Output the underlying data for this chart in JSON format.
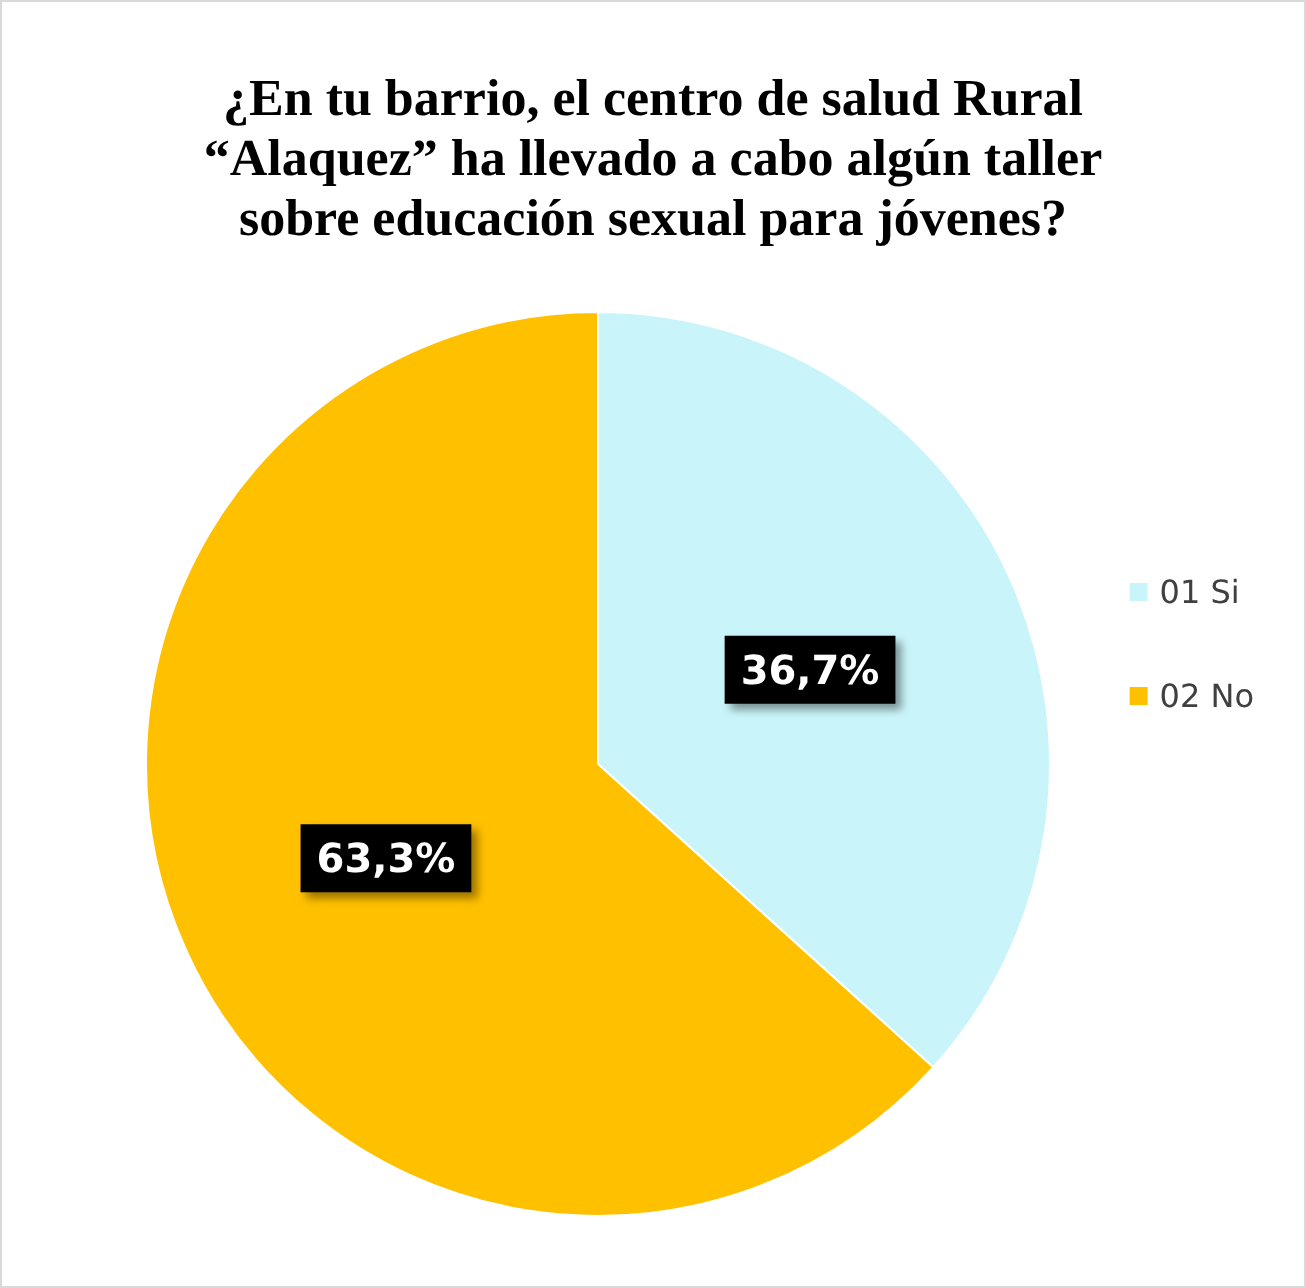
{
  "chart_data": {
    "type": "pie",
    "title": "¿En tu barrio, el centro de salud Rural\n“Alaquez” ha llevado a cabo algún taller\nsobre educación sexual para jóvenes?",
    "categories": [
      "01 Si",
      "02 No"
    ],
    "values": [
      36.7,
      63.3
    ],
    "colors": [
      "#c9f5fa",
      "#ffc000"
    ],
    "value_labels": [
      "36,7%",
      "63,3%"
    ],
    "legend": "right"
  }
}
